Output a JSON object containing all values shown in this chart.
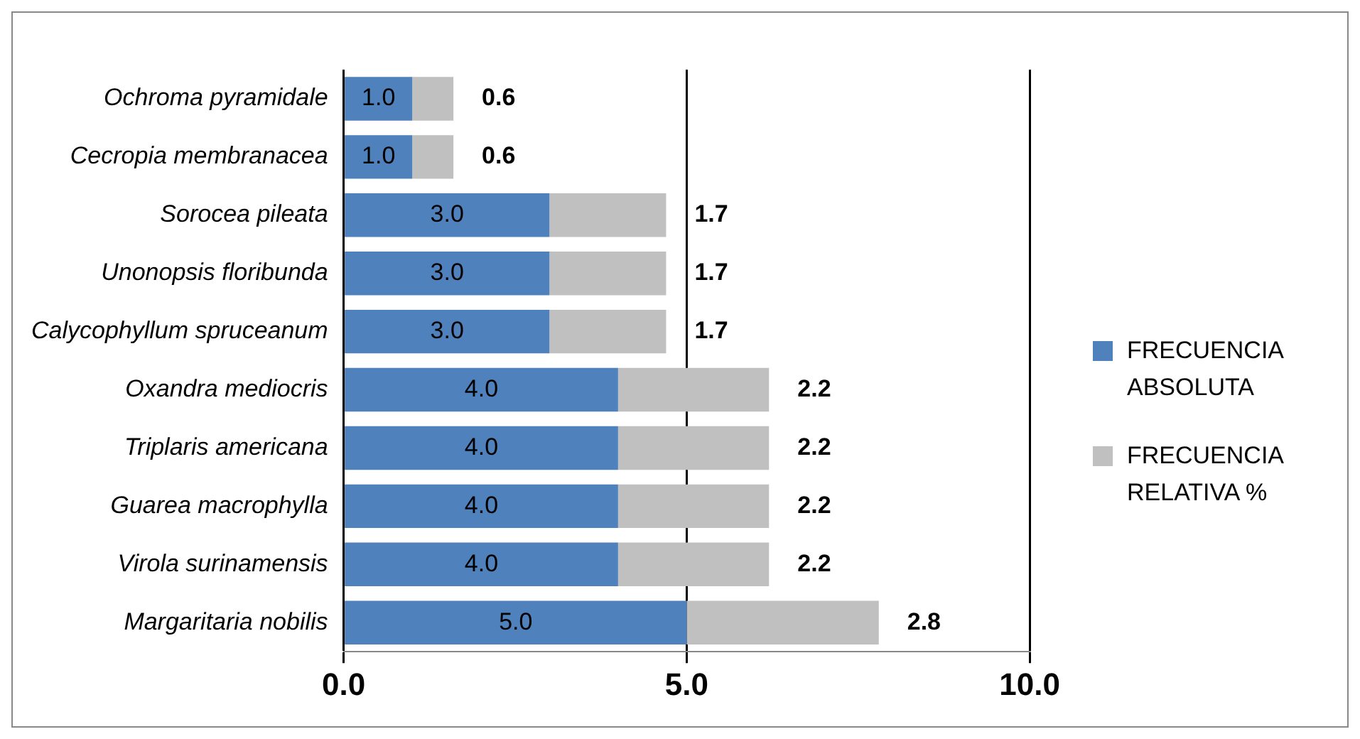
{
  "chart_data": {
    "type": "bar",
    "orientation": "horizontal",
    "stacked": true,
    "categories": [
      "Ochroma pyramidale",
      "Cecropia membranacea",
      "Sorocea pileata",
      "Unonopsis floribunda",
      "Calycophyllum spruceanum",
      "Oxandra mediocris",
      "Triplaris americana",
      "Guarea macrophylla",
      "Virola surinamensis",
      "Margaritaria nobilis"
    ],
    "series": [
      {
        "name": "FRECUENCIA ABSOLUTA",
        "color": "#4f81bd",
        "values": [
          1.0,
          1.0,
          3.0,
          3.0,
          3.0,
          4.0,
          4.0,
          4.0,
          4.0,
          5.0
        ],
        "value_labels": [
          "1.0",
          "1.0",
          "3.0",
          "3.0",
          "3.0",
          "4.0",
          "4.0",
          "4.0",
          "4.0",
          "5.0"
        ]
      },
      {
        "name": "FRECUENCIA RELATIVA %",
        "color": "#c0c0c0",
        "values": [
          0.6,
          0.6,
          1.7,
          1.7,
          1.7,
          2.2,
          2.2,
          2.2,
          2.2,
          2.8
        ],
        "value_labels": [
          "0.6",
          "0.6",
          "1.7",
          "1.7",
          "1.7",
          "2.2",
          "2.2",
          "2.2",
          "2.2",
          "2.8"
        ]
      }
    ],
    "xlim": [
      0,
      10
    ],
    "xticks": [
      {
        "value": 0,
        "label": "0.0"
      },
      {
        "value": 5,
        "label": "5.0"
      },
      {
        "value": 10,
        "label": "10.0"
      }
    ],
    "grid": "x",
    "legend": "right"
  }
}
